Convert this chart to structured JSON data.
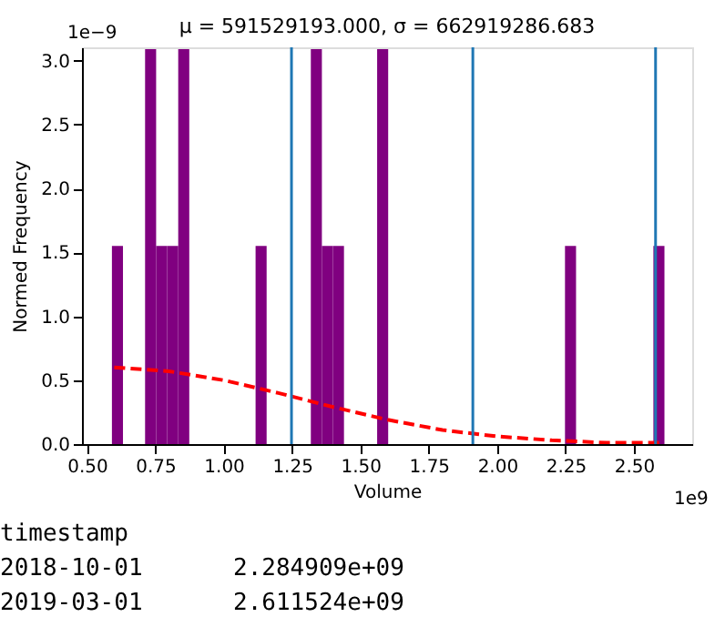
{
  "chart_data": {
    "type": "histogram",
    "title": "μ = 591529193.000,  σ = 662919286.683",
    "xlabel": "Volume",
    "ylabel": "Normed Frequency",
    "bins": [
      0.5915,
      0.6319,
      0.6723,
      0.7127,
      0.7531,
      0.7935,
      0.8339,
      0.8743,
      0.9147,
      0.9551,
      0.9955,
      1.0359,
      1.0763,
      1.1167,
      1.1571,
      1.1975,
      1.2379,
      1.2783,
      1.3187,
      1.3591,
      1.3995,
      1.4399,
      1.4803,
      1.5207,
      1.5611,
      1.6015,
      1.6419,
      1.6823,
      1.7227,
      1.7631,
      1.8035,
      1.8439,
      1.8843,
      1.9247,
      1.9651,
      2.0055,
      2.0459,
      2.0863,
      2.1267,
      2.1671,
      2.2075,
      2.2479,
      2.2883,
      2.3287,
      2.3691,
      2.4095,
      2.4499,
      2.4903,
      2.5307,
      2.5711,
      2.6115
    ],
    "values": [
      1.55,
      0,
      0,
      3.09,
      1.55,
      1.55,
      3.09,
      0,
      0,
      0,
      0,
      0,
      0,
      1.55,
      0,
      0,
      0,
      0,
      3.09,
      1.55,
      1.55,
      0,
      0,
      0,
      3.09,
      0,
      0,
      0,
      0,
      0,
      0,
      0,
      0,
      0,
      0,
      0,
      0,
      0,
      0,
      0,
      0,
      1.55,
      0,
      0,
      0,
      0,
      0,
      0,
      0,
      1.55
    ],
    "color": "#800080",
    "series": [
      {
        "type": "line",
        "color": "#ff0000",
        "line_style": "dashed",
        "x": [
          0.6,
          0.8,
          1.0,
          1.2,
          1.4,
          1.6,
          1.8,
          2.0,
          2.2,
          2.4,
          2.6
        ],
        "values": [
          0.6,
          0.57,
          0.5,
          0.4,
          0.29,
          0.19,
          0.11,
          0.06,
          0.03,
          0.01,
          0.01
        ]
      }
    ],
    "ref_lines": [
      {
        "axis": "x",
        "value": 1.248,
        "color": "#1f77b4"
      },
      {
        "axis": "x",
        "value": 1.911,
        "color": "#1f77b4"
      },
      {
        "axis": "x",
        "value": 2.579,
        "color": "#1f77b4"
      }
    ],
    "xlim": [
      0.482,
      2.713
    ],
    "xticks": [
      {
        "value": 0.5,
        "label": "0.50"
      },
      0.75,
      {
        "value": 1.0,
        "label": "1.00"
      },
      1.25,
      {
        "value": 1.5,
        "label": "1.50"
      },
      1.75,
      {
        "value": 2.0,
        "label": "2.00"
      },
      2.25,
      {
        "value": 2.5,
        "label": "2.50"
      }
    ],
    "ylim": [
      0,
      3.105
    ],
    "yticks": [
      {
        "value": 0,
        "label": "0.0"
      },
      0.5,
      {
        "value": 1,
        "label": "1.0"
      },
      1.5,
      {
        "value": 2,
        "label": "2.0"
      },
      2.5,
      {
        "value": 3,
        "label": "3.0"
      }
    ],
    "grid": false,
    "annotations": [
      "1e9",
      "1e−9",
      "timestamp",
      "2018-10-01",
      "2.284909e+09",
      "2019-03-01",
      "2.611524e+09"
    ]
  }
}
